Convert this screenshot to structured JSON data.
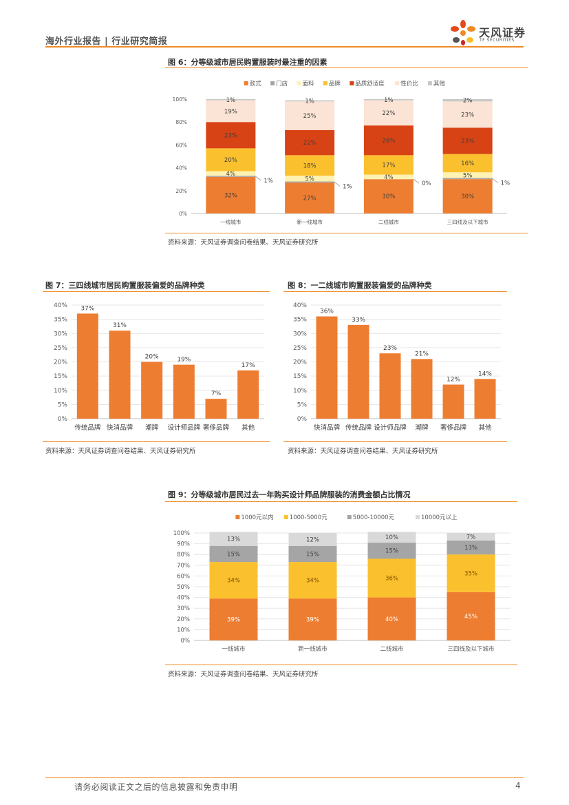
{
  "header": {
    "title": "海外行业报告 | 行业研究简报",
    "logo_cn": "天风证券",
    "logo_en": "TF SECURITIES"
  },
  "colors": {
    "accent": "#f08a24",
    "orange": "#ed7d31",
    "gray": "#a5a5a5",
    "yellow": "#fbc02d",
    "red": "#d84315",
    "peach": "#fbe4d5",
    "lightgray": "#d9d9d9"
  },
  "fig6": {
    "title": "图 6：分等级城市居民购置服装时最注重的因素",
    "source": "资料来源：天风证券调查问卷结果、天风证券研究所"
  },
  "fig7": {
    "title": "图 7：三四线城市居民购置服装偏爱的品牌种类",
    "source": "资料来源：天风证券调查问卷结果、天风证券研究所"
  },
  "fig8": {
    "title": "图 8：一二线城市购置服装偏爱的品牌种类",
    "source": "资料来源：天风证券调查问卷结果、天风证券研究所"
  },
  "fig9": {
    "title": "图 9：分等级城市居民过去一年购买设计师品牌服装的消费金额占比情况",
    "source": "资料来源：天风证券调查问卷结果、天风证券研究所"
  },
  "footer": {
    "disclaimer": "请务必阅读正文之后的信息披露和免责申明",
    "page": "4"
  },
  "chart_data": [
    {
      "id": "fig6",
      "type": "bar",
      "stacked": true,
      "title": "图 6：分等级城市居民购置服装时最注重的因素",
      "categories": [
        "一线城市",
        "新一线城市",
        "二线城市",
        "三四线及以下城市"
      ],
      "series": [
        {
          "name": "款式",
          "color": "#ed7d31",
          "values": [
            32,
            27,
            30,
            30
          ]
        },
        {
          "name": "门店",
          "color": "#a5a5a5",
          "values": [
            1,
            1,
            0,
            1
          ]
        },
        {
          "name": "面料",
          "color": "#fff2b3",
          "values": [
            4,
            5,
            4,
            5
          ]
        },
        {
          "name": "品牌",
          "color": "#fbc02d",
          "values": [
            20,
            18,
            17,
            16
          ]
        },
        {
          "name": "品质舒适度",
          "color": "#d84315",
          "values": [
            23,
            22,
            26,
            23
          ]
        },
        {
          "name": "性价比",
          "color": "#fbe4d5",
          "values": [
            19,
            25,
            22,
            23
          ]
        },
        {
          "name": "其他",
          "color": "#c8c8c8",
          "values": [
            1,
            1,
            1,
            2
          ]
        }
      ],
      "value_labels": {
        "款式": [
          "32%",
          "27%",
          "30%",
          "30%"
        ],
        "门店": [
          "1%",
          "1%",
          "0%",
          "1%"
        ],
        "面料": [
          "4%",
          "5%",
          "4%",
          "5%"
        ],
        "品牌": [
          "20%",
          "18%",
          "17%",
          "16%"
        ],
        "品质舒适度": [
          "23%",
          "22%",
          "26%",
          "23%"
        ],
        "性价比": [
          "19%",
          "25%",
          "22%",
          "23%"
        ],
        "其他": [
          "1%",
          "1%",
          "1%",
          "2%"
        ]
      },
      "yticks": [
        "0%",
        "20%",
        "40%",
        "60%",
        "80%",
        "100%"
      ],
      "ylim": [
        0,
        100
      ],
      "legend": "top"
    },
    {
      "id": "fig7",
      "type": "bar",
      "title": "图 7：三四线城市居民购置服装偏爱的品牌种类",
      "categories": [
        "传统品牌",
        "快消品牌",
        "潮牌",
        "设计师品牌",
        "奢侈品牌",
        "其他"
      ],
      "values": [
        37,
        31,
        20,
        19,
        7,
        17
      ],
      "value_labels": [
        "37%",
        "31%",
        "20%",
        "19%",
        "7%",
        "17%"
      ],
      "yticks": [
        "0%",
        "5%",
        "10%",
        "15%",
        "20%",
        "25%",
        "30%",
        "35%",
        "40%"
      ],
      "ylim": [
        0,
        40
      ],
      "color": "#ed7d31"
    },
    {
      "id": "fig8",
      "type": "bar",
      "title": "图 8：一二线城市购置服装偏爱的品牌种类",
      "categories": [
        "快消品牌",
        "传统品牌",
        "设计师品牌",
        "潮牌",
        "奢侈品牌",
        "其他"
      ],
      "values": [
        36,
        33,
        23,
        21,
        12,
        14
      ],
      "value_labels": [
        "36%",
        "33%",
        "23%",
        "21%",
        "12%",
        "14%"
      ],
      "yticks": [
        "0%",
        "5%",
        "10%",
        "15%",
        "20%",
        "25%",
        "30%",
        "35%",
        "40%"
      ],
      "ylim": [
        0,
        40
      ],
      "color": "#ed7d31"
    },
    {
      "id": "fig9",
      "type": "bar",
      "stacked": true,
      "title": "图 9：分等级城市居民过去一年购买设计师品牌服装的消费金额占比情况",
      "categories": [
        "一线城市",
        "新一线城市",
        "二线城市",
        "三四线及以下城市"
      ],
      "series": [
        {
          "name": "1000元以内",
          "color": "#ed7d31",
          "values": [
            39,
            39,
            40,
            45
          ]
        },
        {
          "name": "1000-5000元",
          "color": "#fbc02d",
          "values": [
            34,
            34,
            36,
            35
          ]
        },
        {
          "name": "5000-10000元",
          "color": "#a5a5a5",
          "values": [
            15,
            15,
            15,
            13
          ]
        },
        {
          "name": "10000元以上",
          "color": "#d9d9d9",
          "values": [
            13,
            12,
            10,
            7
          ]
        }
      ],
      "value_labels": {
        "1000元以内": [
          "39%",
          "39%",
          "40%",
          "45%"
        ],
        "1000-5000元": [
          "34%",
          "34%",
          "36%",
          "35%"
        ],
        "5000-10000元": [
          "15%",
          "15%",
          "15%",
          "13%"
        ],
        "10000元以上": [
          "13%",
          "12%",
          "10%",
          "7%"
        ]
      },
      "yticks": [
        "0%",
        "10%",
        "20%",
        "30%",
        "40%",
        "50%",
        "60%",
        "70%",
        "80%",
        "90%",
        "100%"
      ],
      "ylim": [
        0,
        100
      ],
      "legend": "top"
    }
  ]
}
